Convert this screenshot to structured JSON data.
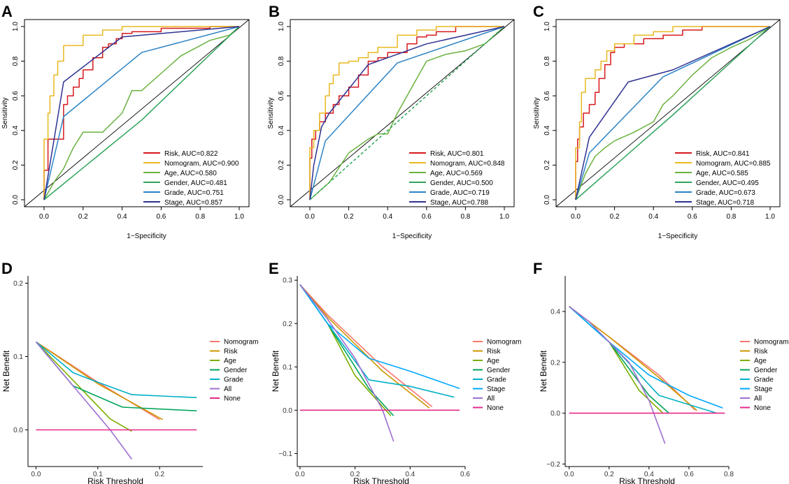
{
  "figure": {
    "panel_letters": [
      "A",
      "B",
      "C",
      "D",
      "E",
      "F"
    ]
  },
  "chart_data": [
    {
      "panel": "A",
      "type": "line",
      "xlabel": "1−Specificity",
      "ylabel": "Sensitivity",
      "xlim": [
        0,
        1
      ],
      "ylim": [
        0,
        1
      ],
      "xticks": [
        "0.0",
        "0.2",
        "0.4",
        "0.6",
        "0.8",
        "1.0"
      ],
      "yticks": [
        "0.0",
        "0.2",
        "0.4",
        "0.6",
        "0.8",
        "1.0"
      ],
      "legend_position": "bottom-right",
      "series": [
        {
          "name": "Risk",
          "label": "Risk, AUC=0.822",
          "color": "#d7191c",
          "step": true,
          "x": [
            0,
            0.02,
            0.02,
            0.1,
            0.1,
            0.12,
            0.15,
            0.18,
            0.2,
            0.25,
            0.3,
            0.33,
            0.37,
            0.4,
            0.45,
            0.6,
            0.85,
            1
          ],
          "y": [
            0,
            0.17,
            0.35,
            0.35,
            0.5,
            0.55,
            0.6,
            0.65,
            0.7,
            0.75,
            0.82,
            0.88,
            0.9,
            0.93,
            0.96,
            0.97,
            0.99,
            1
          ]
        },
        {
          "name": "Nomogram",
          "label": "Nomogram, AUC=0.900",
          "color": "#e8b820",
          "step": true,
          "x": [
            0,
            0.02,
            0.03,
            0.05,
            0.07,
            0.1,
            0.14,
            0.2,
            0.3,
            0.4,
            0.5,
            0.7,
            1
          ],
          "y": [
            0,
            0.35,
            0.5,
            0.6,
            0.72,
            0.8,
            0.89,
            0.89,
            0.95,
            0.98,
            1,
            1,
            1
          ]
        },
        {
          "name": "Age",
          "label": "Age, AUC=0.580",
          "color": "#6ab23f",
          "step": false,
          "x": [
            0,
            0.05,
            0.1,
            0.15,
            0.2,
            0.3,
            0.4,
            0.45,
            0.5,
            0.6,
            0.7,
            0.85,
            0.95,
            1
          ],
          "y": [
            0,
            0.1,
            0.18,
            0.3,
            0.39,
            0.39,
            0.5,
            0.63,
            0.63,
            0.73,
            0.83,
            0.92,
            0.95,
            1
          ]
        },
        {
          "name": "Gender",
          "label": "Gender, AUC=0.481",
          "color": "#2ea55b",
          "step": false,
          "x": [
            0,
            0.5,
            1
          ],
          "y": [
            0,
            0.46,
            1
          ]
        },
        {
          "name": "Grade",
          "label": "Grade, AUC=0.751",
          "color": "#2b83c6",
          "step": false,
          "x": [
            0,
            0.1,
            0.5,
            1
          ],
          "y": [
            0,
            0.48,
            0.85,
            1
          ]
        },
        {
          "name": "Stage",
          "label": "Stage, AUC=0.857",
          "color": "#2e3192",
          "step": false,
          "x": [
            0,
            0.1,
            0.4,
            1
          ],
          "y": [
            0,
            0.68,
            0.94,
            1
          ]
        }
      ]
    },
    {
      "panel": "B",
      "type": "line",
      "xlabel": "1−Specificity",
      "ylabel": "Sensitivity",
      "xlim": [
        0,
        1
      ],
      "ylim": [
        0,
        1
      ],
      "xticks": [
        "0.0",
        "0.2",
        "0.4",
        "0.6",
        "0.8",
        "1.0"
      ],
      "yticks": [
        "0.0",
        "0.2",
        "0.4",
        "0.6",
        "0.8",
        "1.0"
      ],
      "legend_position": "bottom-right",
      "series": [
        {
          "name": "Risk",
          "label": "Risk, AUC=0.801",
          "color": "#d7191c",
          "step": true,
          "x": [
            0,
            0.01,
            0.03,
            0.05,
            0.08,
            0.12,
            0.15,
            0.2,
            0.25,
            0.3,
            0.35,
            0.4,
            0.5,
            0.55,
            0.6,
            0.65,
            0.75,
            1
          ],
          "y": [
            0,
            0.24,
            0.35,
            0.4,
            0.45,
            0.5,
            0.55,
            0.6,
            0.65,
            0.72,
            0.8,
            0.82,
            0.85,
            0.9,
            0.94,
            0.95,
            0.97,
            1
          ]
        },
        {
          "name": "Nomogram",
          "label": "Nomogram, AUC=0.848",
          "color": "#e8b820",
          "step": true,
          "x": [
            0,
            0.02,
            0.05,
            0.08,
            0.1,
            0.12,
            0.15,
            0.2,
            0.25,
            0.3,
            0.35,
            0.45,
            0.55,
            0.65,
            1
          ],
          "y": [
            0,
            0.3,
            0.4,
            0.5,
            0.6,
            0.67,
            0.72,
            0.79,
            0.8,
            0.82,
            0.85,
            0.88,
            0.95,
            0.98,
            1
          ]
        },
        {
          "name": "Age",
          "label": "Age, AUC=0.569",
          "color": "#6ab23f",
          "step": false,
          "x": [
            0,
            0.05,
            0.1,
            0.2,
            0.3,
            0.35,
            0.4,
            0.45,
            0.5,
            0.55,
            0.6,
            0.7,
            0.8,
            0.9,
            1
          ],
          "y": [
            0,
            0.05,
            0.1,
            0.27,
            0.35,
            0.38,
            0.38,
            0.5,
            0.6,
            0.7,
            0.8,
            0.84,
            0.86,
            0.9,
            1
          ]
        },
        {
          "name": "Gender",
          "label": "Gender, AUC=0.500",
          "color": "#2ea55b",
          "step": false,
          "dashed": true,
          "x": [
            0,
            1
          ],
          "y": [
            0,
            1
          ]
        },
        {
          "name": "Grade",
          "label": "Grade, AUC=0.719",
          "color": "#2b83c6",
          "step": false,
          "x": [
            0,
            0.08,
            0.45,
            1
          ],
          "y": [
            0,
            0.34,
            0.79,
            1
          ]
        },
        {
          "name": "Stage",
          "label": "Stage, AUC=0.788",
          "color": "#2e3192",
          "step": false,
          "x": [
            0,
            0.02,
            0.06,
            0.1,
            0.3,
            0.6,
            1
          ],
          "y": [
            0,
            0.2,
            0.42,
            0.5,
            0.78,
            0.9,
            1
          ]
        }
      ]
    },
    {
      "panel": "C",
      "type": "line",
      "xlabel": "1−Specificity",
      "ylabel": "Sensitivity",
      "xlim": [
        0,
        1
      ],
      "ylim": [
        0,
        1
      ],
      "xticks": [
        "0.0",
        "0.2",
        "0.4",
        "0.6",
        "0.8",
        "1.0"
      ],
      "yticks": [
        "0.0",
        "0.2",
        "0.4",
        "0.6",
        "0.8",
        "1.0"
      ],
      "legend_position": "bottom-right",
      "series": [
        {
          "name": "Risk",
          "label": "Risk, AUC=0.841",
          "color": "#d7191c",
          "step": true,
          "x": [
            0,
            0.01,
            0.02,
            0.04,
            0.07,
            0.1,
            0.12,
            0.15,
            0.18,
            0.2,
            0.25,
            0.35,
            0.45,
            0.55,
            0.65,
            0.8,
            1
          ],
          "y": [
            0,
            0.22,
            0.35,
            0.42,
            0.5,
            0.55,
            0.62,
            0.7,
            0.78,
            0.85,
            0.88,
            0.9,
            0.93,
            0.95,
            0.98,
            1,
            1
          ]
        },
        {
          "name": "Nomogram",
          "label": "Nomogram, AUC=0.885",
          "color": "#e8b820",
          "step": true,
          "x": [
            0,
            0.02,
            0.03,
            0.05,
            0.1,
            0.13,
            0.16,
            0.2,
            0.3,
            0.4,
            0.5,
            0.65,
            1
          ],
          "y": [
            0,
            0.3,
            0.45,
            0.62,
            0.7,
            0.75,
            0.8,
            0.86,
            0.9,
            0.95,
            0.97,
            1,
            1
          ]
        },
        {
          "name": "Age",
          "label": "Age, AUC=0.585",
          "color": "#6ab23f",
          "step": false,
          "x": [
            0,
            0.05,
            0.1,
            0.15,
            0.2,
            0.3,
            0.4,
            0.45,
            0.5,
            0.6,
            0.7,
            0.8,
            0.9,
            1
          ],
          "y": [
            0,
            0.15,
            0.25,
            0.3,
            0.34,
            0.39,
            0.45,
            0.55,
            0.6,
            0.72,
            0.82,
            0.88,
            0.93,
            1
          ]
        },
        {
          "name": "Gender",
          "label": "Gender, AUC=0.495",
          "color": "#2ea55b",
          "step": false,
          "x": [
            0,
            0.5,
            1
          ],
          "y": [
            0,
            0.49,
            1
          ]
        },
        {
          "name": "Grade",
          "label": "Grade, AUC=0.673",
          "color": "#2b83c6",
          "step": false,
          "x": [
            0,
            0.07,
            0.45,
            1
          ],
          "y": [
            0,
            0.27,
            0.71,
            1
          ]
        },
        {
          "name": "Stage",
          "label": "Stage, AUC=0.718",
          "color": "#2e3192",
          "step": false,
          "x": [
            0,
            0.07,
            0.27,
            0.5,
            1
          ],
          "y": [
            0,
            0.36,
            0.68,
            0.75,
            1
          ]
        }
      ]
    },
    {
      "panel": "D",
      "type": "line",
      "xlabel": "Risk Threshold",
      "ylabel": "Net Benefit",
      "xlim": [
        -0.013,
        0.27
      ],
      "ylim": [
        -0.05,
        0.21
      ],
      "xticks": [
        0,
        0.1,
        0.2
      ],
      "xtick_labels": [
        "0.0",
        "0.1",
        "0.2"
      ],
      "yticks": [
        0,
        0.1,
        0.2
      ],
      "ytick_labels": [
        "0.0",
        "0.1",
        "0.2"
      ],
      "legend_position": "right",
      "series": [
        {
          "name": "Nomogram",
          "color": "#f8766d",
          "x": [
            0,
            0.1,
            0.2
          ],
          "y": [
            0.12,
            0.065,
            0.014
          ]
        },
        {
          "name": "Risk",
          "color": "#cd9600",
          "x": [
            0,
            0.1,
            0.205
          ],
          "y": [
            0.12,
            0.063,
            0.014
          ]
        },
        {
          "name": "Age",
          "color": "#7cae00",
          "x": [
            0,
            0.12,
            0.155
          ],
          "y": [
            0.12,
            0.015,
            -0.002
          ]
        },
        {
          "name": "Gender",
          "color": "#00a65a",
          "x": [
            0,
            0.06,
            0.14,
            0.26
          ],
          "y": [
            0.12,
            0.06,
            0.031,
            0.026
          ]
        },
        {
          "name": "Grade",
          "color": "#00b0c8",
          "x": [
            0,
            0.06,
            0.1,
            0.155,
            0.26
          ],
          "y": [
            0.12,
            0.078,
            0.065,
            0.048,
            0.044
          ]
        },
        {
          "name": "All",
          "color": "#9f6fd1",
          "x": [
            0,
            0.12,
            0.155
          ],
          "y": [
            0.12,
            0.0,
            -0.04
          ]
        },
        {
          "name": "None",
          "color": "#e7298a",
          "x": [
            0,
            0.26
          ],
          "y": [
            0,
            0
          ]
        }
      ]
    },
    {
      "panel": "E",
      "type": "line",
      "xlabel": "Risk Threshold",
      "ylabel": "Net Benefit",
      "xlim": [
        -0.01,
        0.6
      ],
      "ylim": [
        -0.13,
        0.31
      ],
      "xticks": [
        0,
        0.2,
        0.4,
        0.6
      ],
      "xtick_labels": [
        "0.0",
        "0.2",
        "0.4",
        "0.6"
      ],
      "yticks": [
        -0.1,
        0,
        0.1,
        0.2,
        0.3
      ],
      "ytick_labels": [
        "−0.1",
        "0.0",
        "0.1",
        "0.2",
        "0.3"
      ],
      "legend_position": "right",
      "series": [
        {
          "name": "Nomogram",
          "color": "#f8766d",
          "x": [
            0,
            0.1,
            0.3,
            0.48
          ],
          "y": [
            0.29,
            0.22,
            0.1,
            0.008
          ]
        },
        {
          "name": "Risk",
          "color": "#cd9600",
          "x": [
            0,
            0.1,
            0.3,
            0.47
          ],
          "y": [
            0.29,
            0.215,
            0.09,
            0.005
          ]
        },
        {
          "name": "Age",
          "color": "#7cae00",
          "x": [
            0,
            0.1,
            0.2,
            0.33
          ],
          "y": [
            0.29,
            0.2,
            0.08,
            -0.013
          ]
        },
        {
          "name": "Gender",
          "color": "#00a65a",
          "x": [
            0,
            0.1,
            0.25,
            0.34
          ],
          "y": [
            0.29,
            0.2,
            0.05,
            -0.013
          ]
        },
        {
          "name": "Grade",
          "color": "#00b0c8",
          "x": [
            0,
            0.1,
            0.25,
            0.4,
            0.56
          ],
          "y": [
            0.29,
            0.2,
            0.07,
            0.055,
            0.03
          ]
        },
        {
          "name": "Stage",
          "color": "#00a9ff",
          "x": [
            0,
            0.1,
            0.25,
            0.4,
            0.58
          ],
          "y": [
            0.29,
            0.2,
            0.12,
            0.09,
            0.05
          ]
        },
        {
          "name": "All",
          "color": "#9f6fd1",
          "x": [
            0,
            0.1,
            0.2,
            0.3,
            0.34
          ],
          "y": [
            0.29,
            0.21,
            0.12,
            0.0,
            -0.072
          ]
        },
        {
          "name": "None",
          "color": "#e7298a",
          "x": [
            0,
            0.58
          ],
          "y": [
            0,
            0
          ]
        }
      ]
    },
    {
      "panel": "F",
      "type": "line",
      "xlabel": "Risk Threshold",
      "ylabel": "Net Benefit",
      "xlim": [
        -0.02,
        0.8
      ],
      "ylim": [
        -0.21,
        0.54
      ],
      "xticks": [
        0,
        0.2,
        0.4,
        0.6,
        0.8
      ],
      "xtick_labels": [
        "0.0",
        "0.2",
        "0.4",
        "0.6",
        "0.8"
      ],
      "yticks": [
        -0.2,
        0,
        0.2,
        0.4
      ],
      "ytick_labels": [
        "−0.2",
        "0.0",
        "0.2",
        "0.4"
      ],
      "legend_position": "right",
      "series": [
        {
          "name": "Nomogram",
          "color": "#f8766d",
          "x": [
            0,
            0.2,
            0.45,
            0.63
          ],
          "y": [
            0.42,
            0.3,
            0.15,
            0.013
          ]
        },
        {
          "name": "Risk",
          "color": "#cd9600",
          "x": [
            0,
            0.2,
            0.45,
            0.64
          ],
          "y": [
            0.42,
            0.3,
            0.14,
            0.01
          ]
        },
        {
          "name": "Age",
          "color": "#7cae00",
          "x": [
            0,
            0.2,
            0.35,
            0.47
          ],
          "y": [
            0.42,
            0.28,
            0.09,
            0.0
          ]
        },
        {
          "name": "Gender",
          "color": "#00a65a",
          "x": [
            0,
            0.2,
            0.4,
            0.5
          ],
          "y": [
            0.42,
            0.28,
            0.07,
            0.0
          ]
        },
        {
          "name": "Grade",
          "color": "#00b0c8",
          "x": [
            0,
            0.2,
            0.45,
            0.74
          ],
          "y": [
            0.42,
            0.28,
            0.07,
            0.0
          ]
        },
        {
          "name": "Stage",
          "color": "#00a9ff",
          "x": [
            0,
            0.2,
            0.4,
            0.6,
            0.77
          ],
          "y": [
            0.42,
            0.28,
            0.15,
            0.07,
            0.02
          ]
        },
        {
          "name": "All",
          "color": "#9f6fd1",
          "x": [
            0,
            0.1,
            0.3,
            0.4,
            0.48
          ],
          "y": [
            0.42,
            0.36,
            0.2,
            0.05,
            -0.12
          ]
        },
        {
          "name": "None",
          "color": "#e7298a",
          "x": [
            0,
            0.78
          ],
          "y": [
            0,
            0
          ]
        }
      ]
    }
  ]
}
